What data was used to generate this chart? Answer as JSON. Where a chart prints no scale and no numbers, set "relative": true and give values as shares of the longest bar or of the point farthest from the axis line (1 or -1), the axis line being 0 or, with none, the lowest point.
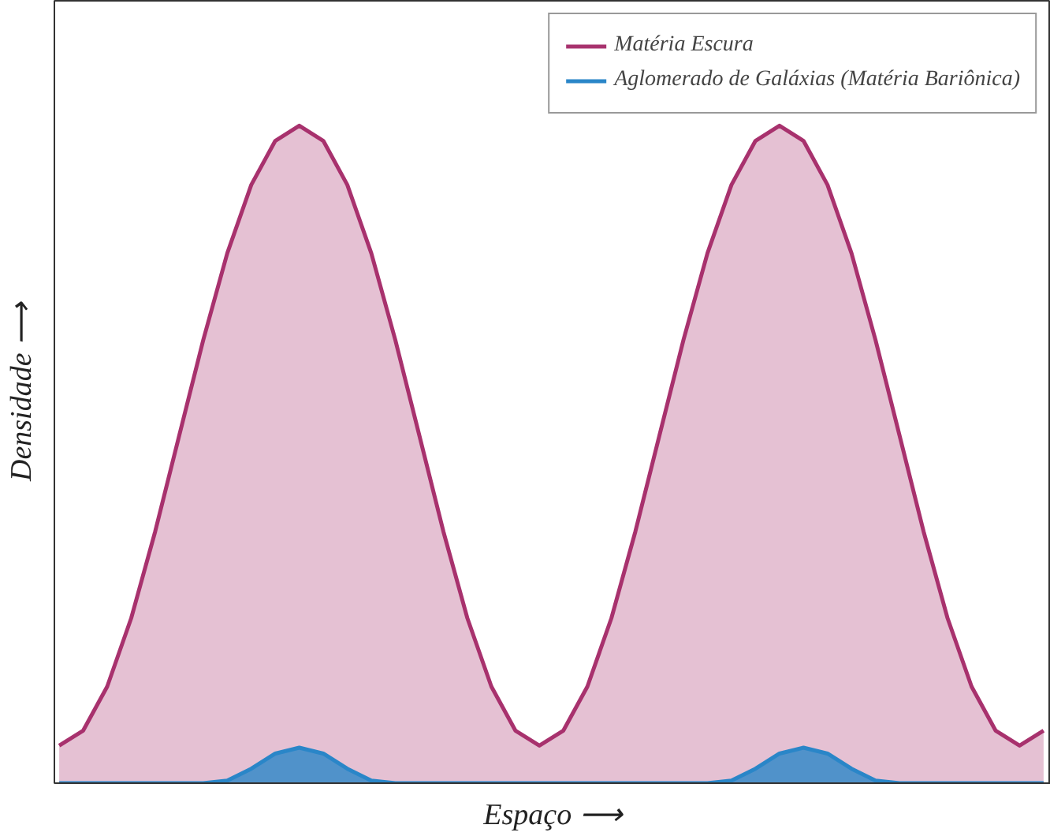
{
  "chart_data": {
    "type": "area",
    "relative": true,
    "xlabel": "Espaço ⟶",
    "ylabel": "Densidade ⟶",
    "legend": "top right",
    "grid": false,
    "categories": [
      null,
      null,
      null,
      null,
      null,
      null,
      null,
      null,
      null,
      null,
      null,
      null,
      null,
      null,
      null,
      null,
      null,
      null,
      null,
      null,
      null,
      null,
      null,
      null,
      null,
      null,
      null,
      null,
      null,
      null,
      null,
      null,
      null,
      null,
      null,
      null,
      null,
      null,
      null,
      null,
      null,
      null
    ],
    "series": [
      {
        "name": "Matéria Escura",
        "color": "#a8326e",
        "values": [
          0.057,
          0.08,
          0.147,
          0.251,
          0.383,
          0.529,
          0.674,
          0.806,
          0.91,
          0.977,
          1.0,
          0.977,
          0.91,
          0.806,
          0.674,
          0.529,
          0.383,
          0.251,
          0.147,
          0.08,
          0.057,
          0.08,
          0.147,
          0.251,
          0.383,
          0.529,
          0.674,
          0.806,
          0.91,
          0.977,
          1.0,
          0.977,
          0.91,
          0.806,
          0.674,
          0.529,
          0.383,
          0.251,
          0.147,
          0.08,
          0.057,
          0.08
        ]
      },
      {
        "name": "Aglomerado de Galáxias (Matéria Bariônica)",
        "color": "#2a86c8",
        "values": [
          0,
          0,
          0,
          0,
          0,
          0,
          0,
          0.004,
          0.022,
          0.045,
          0.054,
          0.045,
          0.022,
          0.004,
          0,
          0,
          0,
          0,
          0,
          0,
          0,
          0,
          0,
          0,
          0,
          0,
          0,
          0,
          0.004,
          0.022,
          0.045,
          0.054,
          0.045,
          0.022,
          0.004,
          0,
          0,
          0,
          0,
          0,
          0,
          0
        ]
      }
    ]
  }
}
